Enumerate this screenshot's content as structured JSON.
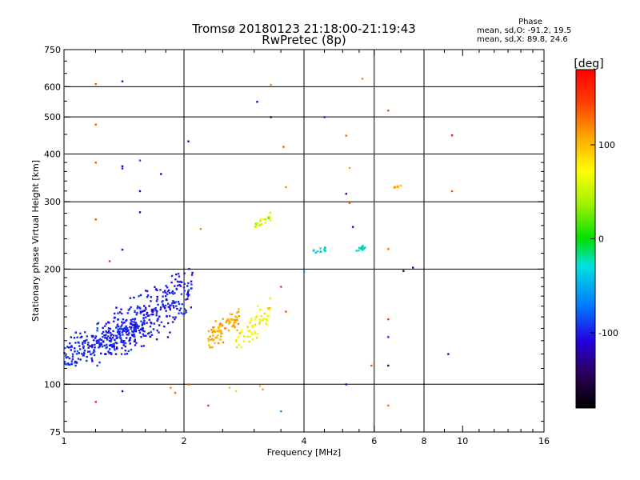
{
  "title": {
    "line1": "Tromsø 20180123 21:18:00-21:19:43",
    "line2": "RwPretec (8p)"
  },
  "phase_stats": {
    "heading": "Phase",
    "line_o": "mean, sd,O: -91.2, 19.5",
    "line_x": "mean, sd,X:  89.8, 24.6"
  },
  "colorbar": {
    "label": "[deg]",
    "ticks": [
      {
        "value": 100,
        "label": "100"
      },
      {
        "value": 0,
        "label": "0"
      },
      {
        "value": -100,
        "label": "-100"
      }
    ],
    "range": [
      -180,
      180
    ]
  },
  "chart_data": {
    "type": "scatter",
    "title": "Tromsø 20180123 21:18:00-21:19:43",
    "subtitle": "RwPretec (8p)",
    "xlabel": "Frequency [MHz]",
    "ylabel": "Stationary phase Virtual Height [km]",
    "x_scale": "log",
    "y_scale": "log",
    "xlim": [
      1,
      16
    ],
    "ylim": [
      75,
      750
    ],
    "x_ticks": [
      1,
      2,
      4,
      6,
      8,
      10,
      16
    ],
    "x_tick_labels": [
      "1",
      "2",
      "4",
      "6",
      "8",
      "10",
      "16"
    ],
    "x_gridlines": [
      2,
      4,
      6,
      8
    ],
    "y_ticks": [
      75,
      100,
      200,
      300,
      400,
      500,
      600,
      750
    ],
    "y_tick_labels": [
      "75",
      "100",
      "200",
      "300",
      "400",
      "500",
      "600",
      "750"
    ],
    "y_gridlines": [
      100,
      200,
      300,
      400,
      500,
      600
    ],
    "grid": true,
    "color_variable": "phase [deg]",
    "clusters": [
      {
        "x_range": [
          1.0,
          1.6
        ],
        "y_range": [
          112,
          160
        ],
        "phase_mean": -95,
        "phase_sd": 12,
        "count": 240
      },
      {
        "x_range": [
          1.25,
          2.1
        ],
        "y_range": [
          120,
          205
        ],
        "phase_mean": -100,
        "phase_sd": 14,
        "count": 300
      },
      {
        "x_range": [
          2.3,
          2.75
        ],
        "y_range": [
          125,
          160
        ],
        "phase_mean": 105,
        "phase_sd": 18,
        "count": 90
      },
      {
        "x_range": [
          2.7,
          3.3
        ],
        "y_range": [
          125,
          170
        ],
        "phase_mean": 80,
        "phase_sd": 30,
        "count": 55
      },
      {
        "x_range": [
          3.0,
          3.3
        ],
        "y_range": [
          255,
          285
        ],
        "phase_mean": 50,
        "phase_sd": 30,
        "count": 22
      },
      {
        "x_range": [
          4.2,
          4.6
        ],
        "y_range": [
          220,
          230
        ],
        "phase_mean": -30,
        "phase_sd": 20,
        "count": 12
      },
      {
        "x_range": [
          5.4,
          5.7
        ],
        "y_range": [
          222,
          232
        ],
        "phase_mean": -25,
        "phase_sd": 20,
        "count": 14
      },
      {
        "x_range": [
          6.7,
          7.0
        ],
        "y_range": [
          326,
          332
        ],
        "phase_mean": 110,
        "phase_sd": 10,
        "count": 8
      }
    ],
    "points": [
      {
        "x": 1.2,
        "y": 610,
        "phase": 140
      },
      {
        "x": 1.2,
        "y": 478,
        "phase": 135
      },
      {
        "x": 1.2,
        "y": 380,
        "phase": 140
      },
      {
        "x": 1.2,
        "y": 270,
        "phase": 140
      },
      {
        "x": 1.2,
        "y": 90,
        "phase": 160
      },
      {
        "x": 1.4,
        "y": 620,
        "phase": -110
      },
      {
        "x": 1.4,
        "y": 372,
        "phase": -110
      },
      {
        "x": 1.4,
        "y": 367,
        "phase": -100
      },
      {
        "x": 1.4,
        "y": 225,
        "phase": -120
      },
      {
        "x": 1.4,
        "y": 96,
        "phase": -120
      },
      {
        "x": 1.55,
        "y": 385,
        "phase": -80
      },
      {
        "x": 1.55,
        "y": 320,
        "phase": -110
      },
      {
        "x": 1.55,
        "y": 282,
        "phase": -110
      },
      {
        "x": 1.3,
        "y": 210,
        "phase": 150
      },
      {
        "x": 1.75,
        "y": 355,
        "phase": -110
      },
      {
        "x": 1.9,
        "y": 95,
        "phase": 130
      },
      {
        "x": 1.85,
        "y": 98,
        "phase": 120
      },
      {
        "x": 2.05,
        "y": 432,
        "phase": -120
      },
      {
        "x": 2.05,
        "y": 100,
        "phase": 140
      },
      {
        "x": 2.2,
        "y": 255,
        "phase": 120
      },
      {
        "x": 2.3,
        "y": 88,
        "phase": 150
      },
      {
        "x": 2.6,
        "y": 98,
        "phase": 100
      },
      {
        "x": 2.7,
        "y": 96,
        "phase": 90
      },
      {
        "x": 3.05,
        "y": 548,
        "phase": -120
      },
      {
        "x": 3.3,
        "y": 607,
        "phase": 120
      },
      {
        "x": 3.3,
        "y": 500,
        "phase": -150
      },
      {
        "x": 3.55,
        "y": 418,
        "phase": 140
      },
      {
        "x": 3.6,
        "y": 328,
        "phase": 120
      },
      {
        "x": 3.15,
        "y": 97,
        "phase": 110
      },
      {
        "x": 3.1,
        "y": 99,
        "phase": 100
      },
      {
        "x": 3.5,
        "y": 85,
        "phase": -60
      },
      {
        "x": 3.6,
        "y": 155,
        "phase": 140
      },
      {
        "x": 3.5,
        "y": 180,
        "phase": 150
      },
      {
        "x": 4.0,
        "y": 197,
        "phase": -60
      },
      {
        "x": 4.5,
        "y": 500,
        "phase": -100
      },
      {
        "x": 5.1,
        "y": 447,
        "phase": 130
      },
      {
        "x": 5.2,
        "y": 368,
        "phase": 110
      },
      {
        "x": 5.1,
        "y": 315,
        "phase": -110
      },
      {
        "x": 5.2,
        "y": 298,
        "phase": 130
      },
      {
        "x": 5.3,
        "y": 258,
        "phase": -120
      },
      {
        "x": 5.1,
        "y": 100,
        "phase": -120
      },
      {
        "x": 5.6,
        "y": 630,
        "phase": 120
      },
      {
        "x": 5.9,
        "y": 112,
        "phase": 140
      },
      {
        "x": 6.5,
        "y": 520,
        "phase": 140
      },
      {
        "x": 6.5,
        "y": 226,
        "phase": 130
      },
      {
        "x": 6.5,
        "y": 148,
        "phase": 150
      },
      {
        "x": 6.5,
        "y": 133,
        "phase": -90
      },
      {
        "x": 6.5,
        "y": 112,
        "phase": -140
      },
      {
        "x": 6.5,
        "y": 88,
        "phase": 130
      },
      {
        "x": 7.1,
        "y": 198,
        "phase": -150
      },
      {
        "x": 7.5,
        "y": 202,
        "phase": -110
      },
      {
        "x": 9.4,
        "y": 448,
        "phase": 175
      },
      {
        "x": 9.4,
        "y": 320,
        "phase": 140
      },
      {
        "x": 9.2,
        "y": 120,
        "phase": -110
      }
    ]
  }
}
